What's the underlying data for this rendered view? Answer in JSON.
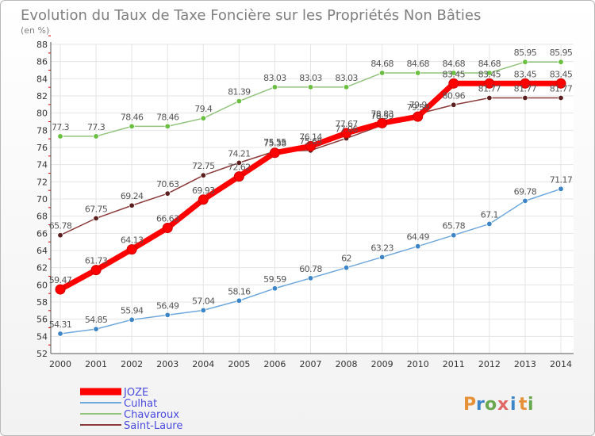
{
  "chart_data": {
    "type": "line",
    "title": "Evolution du Taux de Taxe Foncière sur les Propriétés Non Bâties",
    "subtitle": "(en %)",
    "x": [
      2000,
      2001,
      2002,
      2003,
      2004,
      2005,
      2006,
      2007,
      2008,
      2009,
      2010,
      2011,
      2012,
      2013,
      2014
    ],
    "x_tick_labels": [
      "2000",
      "2001",
      "2002",
      "2003",
      "2004",
      "2005",
      "2006",
      "2007",
      "2008",
      "2009",
      "2010",
      "2011",
      "2012",
      "2013",
      "2014"
    ],
    "ylim": [
      52,
      88
    ],
    "y_ticks": [
      52,
      54,
      56,
      58,
      60,
      62,
      64,
      66,
      68,
      70,
      72,
      74,
      76,
      78,
      80,
      82,
      84,
      86,
      88
    ],
    "grid": true,
    "legend_position": "bottom-left",
    "series": [
      {
        "name": "JOZE",
        "color": "#ff0000",
        "marker_color": "#ff0000",
        "values": [
          59.47,
          61.73,
          64.13,
          66.63,
          69.93,
          72.62,
          75.38,
          76.14,
          77.67,
          78.83,
          79.59,
          83.45,
          83.45,
          83.45,
          83.45
        ],
        "labels": [
          "59.47",
          "61.73",
          "64.13",
          "66.63",
          "69.93",
          "72.62",
          "75.38",
          "76.14",
          "77.67",
          "78.83",
          "79.59",
          "83.45",
          "83.45",
          "83.45",
          "83.45"
        ]
      },
      {
        "name": "Culhat",
        "color": "#6fa8dc",
        "marker_color": "#3d85c6",
        "values": [
          54.31,
          54.85,
          55.94,
          56.49,
          57.04,
          58.16,
          59.59,
          60.78,
          62,
          63.23,
          64.49,
          65.78,
          67.1,
          69.78,
          71.17
        ],
        "labels": [
          "54.31",
          "54.85",
          "55.94",
          "56.49",
          "57.04",
          "58.16",
          "59.59",
          "60.78",
          "62",
          "63.23",
          "64.49",
          "65.78",
          "67.1",
          "69.78",
          "71.17"
        ]
      },
      {
        "name": "Chavaroux",
        "color": "#93c47d",
        "marker_color": "#6abf40",
        "values": [
          77.3,
          77.3,
          78.46,
          78.46,
          79.4,
          81.39,
          83.03,
          83.03,
          83.03,
          84.68,
          84.68,
          84.68,
          84.68,
          85.95,
          85.95
        ],
        "labels": [
          "77.3",
          "77.3",
          "78.46",
          "78.46",
          "79.4",
          "81.39",
          "83.03",
          "83.03",
          "83.03",
          "84.68",
          "84.68",
          "84.68",
          "84.68",
          "85.95",
          "85.95"
        ]
      },
      {
        "name": "Saint-Laure",
        "color": "#8b3a3a",
        "marker_color": "#5c1f1f",
        "values": [
          65.78,
          67.75,
          69.24,
          70.63,
          72.75,
          74.21,
          75.55,
          75.65,
          77.06,
          78.59,
          79.9,
          80.96,
          81.77,
          81.77,
          81.77
        ],
        "labels": [
          "65.78",
          "67.75",
          "69.24",
          "70.63",
          "72.75",
          "74.21",
          "75.55",
          "75.65",
          "77.06",
          "78.59",
          "79.9",
          "80.96",
          "81.77",
          "81.77",
          "81.77"
        ]
      }
    ]
  },
  "logo": {
    "letters": [
      {
        "ch": "P",
        "color": "#e69138"
      },
      {
        "ch": "r",
        "color": "#3d85c6"
      },
      {
        "ch": "o",
        "color": "#6aa84f"
      },
      {
        "ch": "x",
        "color": "#e06666"
      },
      {
        "ch": "i",
        "color": "#3d85c6"
      },
      {
        "ch": "t",
        "color": "#e69138"
      },
      {
        "ch": "i",
        "color": "#6aa84f"
      }
    ]
  }
}
